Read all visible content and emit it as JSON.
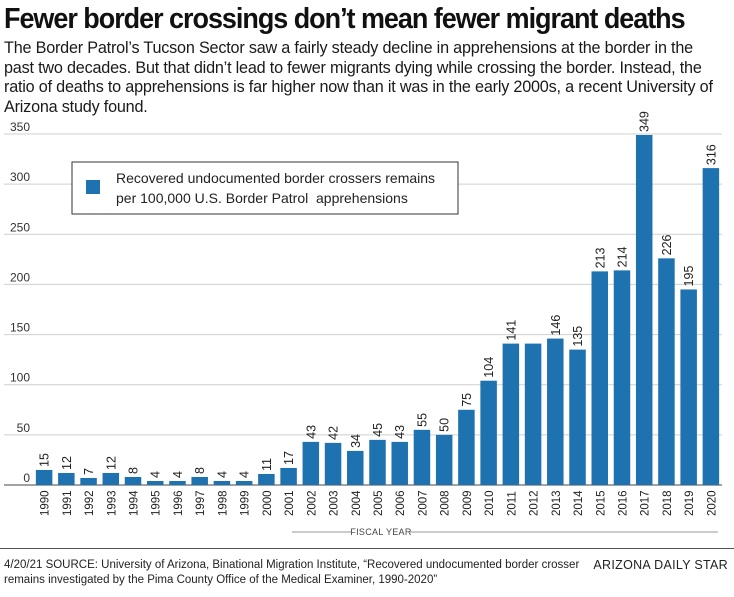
{
  "headline": "Fewer border crossings don’t mean fewer migrant deaths",
  "dek": "The Border Patrol’s Tucson Sector saw a fairly steady decline in apprehensions at the border in the past two decades. But that didn’t lead to fewer migrants dying while crossing the border. Instead, the ratio of deaths to apprehensions is far higher now than it was in the early 2000s, a recent University of Arizona study found.",
  "chart_data": {
    "type": "bar",
    "title": "",
    "xlabel": "FISCAL YEAR",
    "ylabel": "",
    "ylim": [
      0,
      350
    ],
    "yticks": [
      0,
      50,
      100,
      150,
      200,
      250,
      300,
      350
    ],
    "legend": {
      "line1": "Recovered undocumented border crossers remains",
      "line2": "per 100,000 U.S. Border Patrol  apprehensions",
      "placement": "top-left"
    },
    "color": "#1f72b0",
    "categories": [
      "1990",
      "1991",
      "1992",
      "1993",
      "1994",
      "1995",
      "1996",
      "1997",
      "1998",
      "1999",
      "2000",
      "2001",
      "2002",
      "2003",
      "2004",
      "2005",
      "2006",
      "2007",
      "2008",
      "2009",
      "2010",
      "2011",
      "2012",
      "2013",
      "2014",
      "2015",
      "2016",
      "2017",
      "2018",
      "2019",
      "2020"
    ],
    "values": [
      15,
      12,
      7,
      12,
      8,
      4,
      4,
      8,
      4,
      4,
      11,
      17,
      43,
      42,
      34,
      45,
      43,
      55,
      50,
      75,
      104,
      141,
      141,
      146,
      135,
      213,
      214,
      349,
      226,
      195,
      316
    ],
    "labels": [
      "15",
      "12",
      "7",
      "12",
      "8",
      "4",
      "4",
      "8",
      "4",
      "4",
      "11",
      "17",
      "43",
      "42",
      "34",
      "45",
      "43",
      "55",
      "50",
      "75",
      "104",
      "141",
      "",
      "146",
      "135",
      "213",
      "214",
      "349",
      "226",
      "195",
      "316"
    ]
  },
  "footer": {
    "source": "4/20/21  SOURCE: University of Arizona, Binational Migration Institute,  “Recovered undocumented border crosser remains investigated by the Pima County Office of the Medical Examiner, 1990-2020”",
    "credit": "ARIZONA DAILY STAR"
  }
}
